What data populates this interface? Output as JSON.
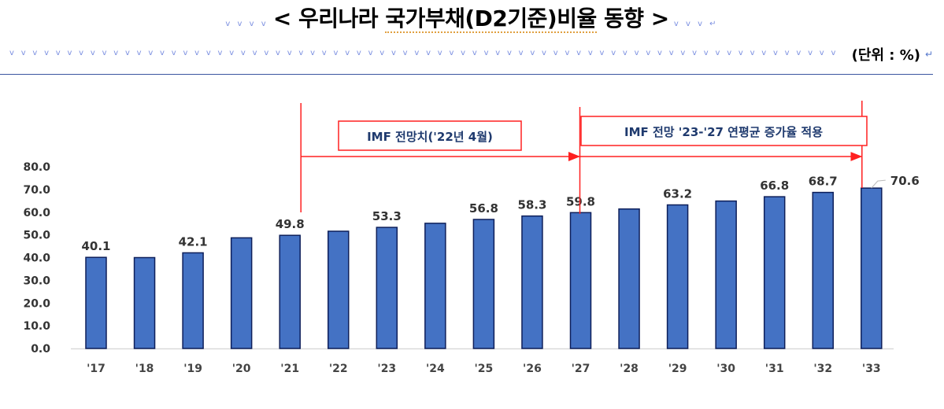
{
  "header": {
    "title": "< 우리나라 국가부채(D2기준)비율 동향 >",
    "title_parts": [
      "< 우리나라 ",
      "국가부채(D2기준)비율",
      " 동향 >"
    ],
    "unit": "(단위 : %)"
  },
  "annotations": {
    "box1": "IMF 전망치('22년 4월)",
    "box2": "IMF 전망 '23-'27 연평균 증가율 적용",
    "colors": {
      "line": "#ff2020",
      "box_text": "#1f3a6e",
      "bar": "#4472c4",
      "bar_border": "#0e1f5a"
    }
  },
  "chart_data": {
    "type": "bar",
    "title": "우리나라 국가부채(D2기준)비율 동향",
    "xlabel": "",
    "ylabel": "(단위 : %)",
    "ylim": [
      0,
      80
    ],
    "yticks": [
      "0.0",
      "10.0",
      "20.0",
      "30.0",
      "40.0",
      "50.0",
      "60.0",
      "70.0",
      "80.0"
    ],
    "categories": [
      "'17",
      "'18",
      "'19",
      "'20",
      "'21",
      "'22",
      "'23",
      "'24",
      "'25",
      "'26",
      "'27",
      "'28",
      "'29",
      "'30",
      "'31",
      "'32",
      "'33"
    ],
    "values": [
      40.1,
      40.0,
      42.1,
      48.7,
      49.8,
      51.6,
      53.3,
      55.1,
      56.8,
      58.3,
      59.8,
      61.4,
      63.2,
      64.9,
      66.8,
      68.7,
      70.6
    ],
    "labels": [
      "40.1",
      "",
      "42.1",
      "",
      "49.8",
      "",
      "53.3",
      "",
      "56.8",
      "58.3",
      "59.8",
      "",
      "63.2",
      "",
      "66.8",
      "68.7",
      "70.6"
    ],
    "grid": false,
    "legend": "none"
  }
}
